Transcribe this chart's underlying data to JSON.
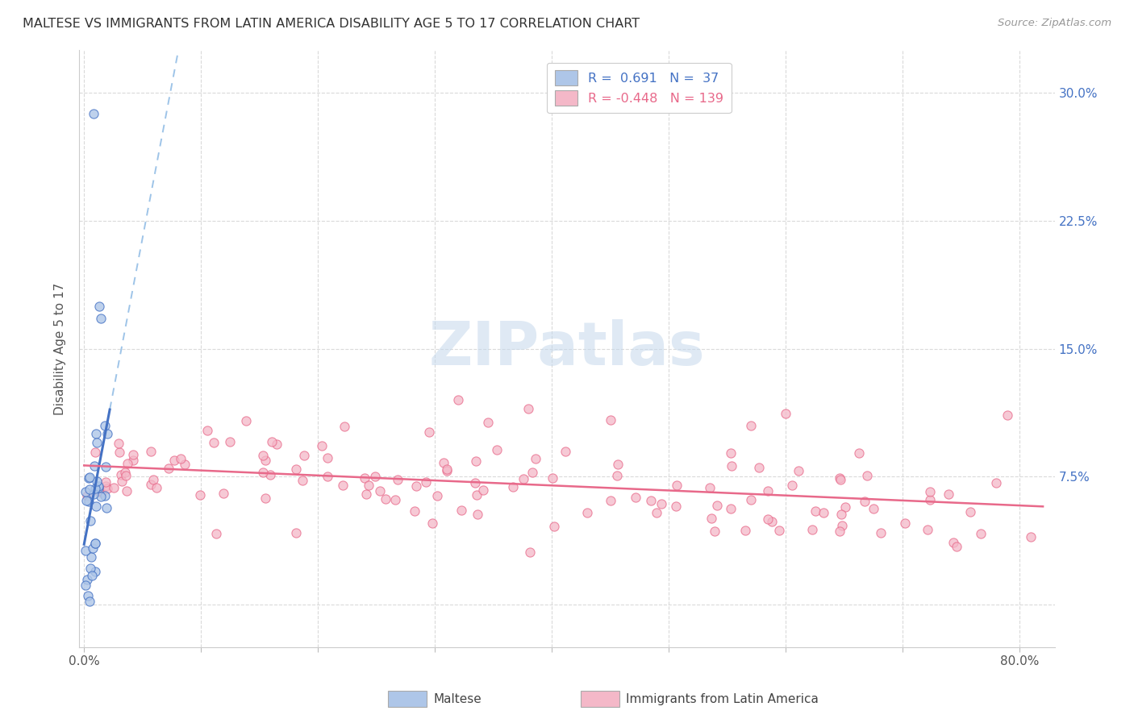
{
  "title": "MALTESE VS IMMIGRANTS FROM LATIN AMERICA DISABILITY AGE 5 TO 17 CORRELATION CHART",
  "source": "Source: ZipAtlas.com",
  "ylabel": "Disability Age 5 to 17",
  "xlim": [
    -0.004,
    0.83
  ],
  "ylim": [
    -0.025,
    0.325
  ],
  "x_tick_positions": [
    0.0,
    0.1,
    0.2,
    0.3,
    0.4,
    0.5,
    0.6,
    0.7,
    0.8
  ],
  "x_tick_labels": [
    "0.0%",
    "",
    "",
    "",
    "",
    "",
    "",
    "",
    "80.0%"
  ],
  "y_tick_positions": [
    0.0,
    0.075,
    0.15,
    0.225,
    0.3
  ],
  "y_tick_labels_right": [
    "",
    "7.5%",
    "15.0%",
    "22.5%",
    "30.0%"
  ],
  "legend_r1": "R =  0.691   N =  37",
  "legend_r2": "R = -0.448   N = 139",
  "legend_label1": "Maltese",
  "legend_label2": "Immigrants from Latin America",
  "watermark": "ZIPatlas",
  "blue_color": "#4472C4",
  "blue_scatter_facecolor": "#AEC6E8",
  "blue_dash_color": "#9EC4E8",
  "pink_color": "#E8698A",
  "pink_scatter_facecolor": "#F4B8C8",
  "grid_color": "#DADADA",
  "background_color": "#FFFFFF",
  "title_color": "#333333",
  "source_color": "#999999",
  "ylabel_color": "#555555",
  "tick_color": "#555555",
  "right_tick_color": "#4472C4"
}
